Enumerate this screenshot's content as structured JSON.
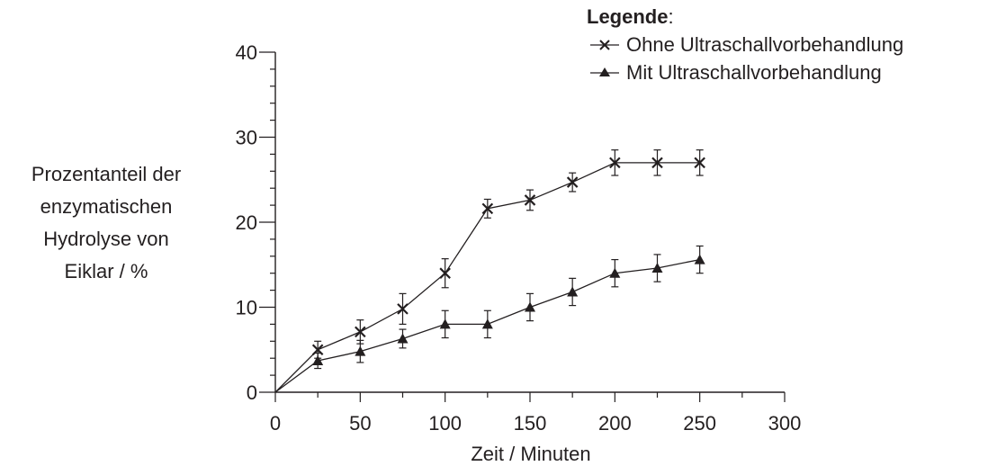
{
  "chart_data": {
    "type": "line",
    "xlabel": "Zeit / Minuten",
    "ylabel": "Prozentanteil der\nenzymatischen\nHydrolyse von\nEiklar / %",
    "xlim": [
      0,
      300
    ],
    "ylim": [
      0,
      40
    ],
    "x_ticks": [
      0,
      50,
      100,
      150,
      200,
      250,
      300
    ],
    "x_tick_labels": [
      "0",
      "50",
      "100",
      "150",
      "200",
      "250",
      "300"
    ],
    "y_ticks": [
      0,
      10,
      20,
      30,
      40
    ],
    "y_tick_labels": [
      "0",
      "10",
      "20",
      "30",
      "40"
    ],
    "grid": false,
    "legend": {
      "title": "Legende",
      "title_suffix": ":",
      "position": "top-right"
    },
    "series": [
      {
        "name": "Ohne Ultraschallvorbehandlung",
        "marker": "x",
        "x": [
          0,
          25,
          50,
          75,
          100,
          125,
          150,
          175,
          200,
          225,
          250
        ],
        "y": [
          0,
          5.0,
          7.1,
          9.8,
          14.0,
          21.6,
          22.6,
          24.7,
          27.0,
          27.0,
          27.0
        ],
        "error": [
          0,
          1.0,
          1.4,
          1.8,
          1.7,
          1.1,
          1.2,
          1.1,
          1.5,
          1.5,
          1.5
        ]
      },
      {
        "name": "Mit Ultraschallvorbehandlung",
        "marker": "triangle",
        "x": [
          0,
          25,
          50,
          75,
          100,
          125,
          150,
          175,
          200,
          225,
          250
        ],
        "y": [
          0,
          3.7,
          4.8,
          6.3,
          8.0,
          8.0,
          10.0,
          11.8,
          14.0,
          14.6,
          15.6
        ],
        "error": [
          0,
          0.9,
          1.3,
          1.1,
          1.6,
          1.6,
          1.6,
          1.6,
          1.6,
          1.6,
          1.6
        ]
      }
    ]
  }
}
